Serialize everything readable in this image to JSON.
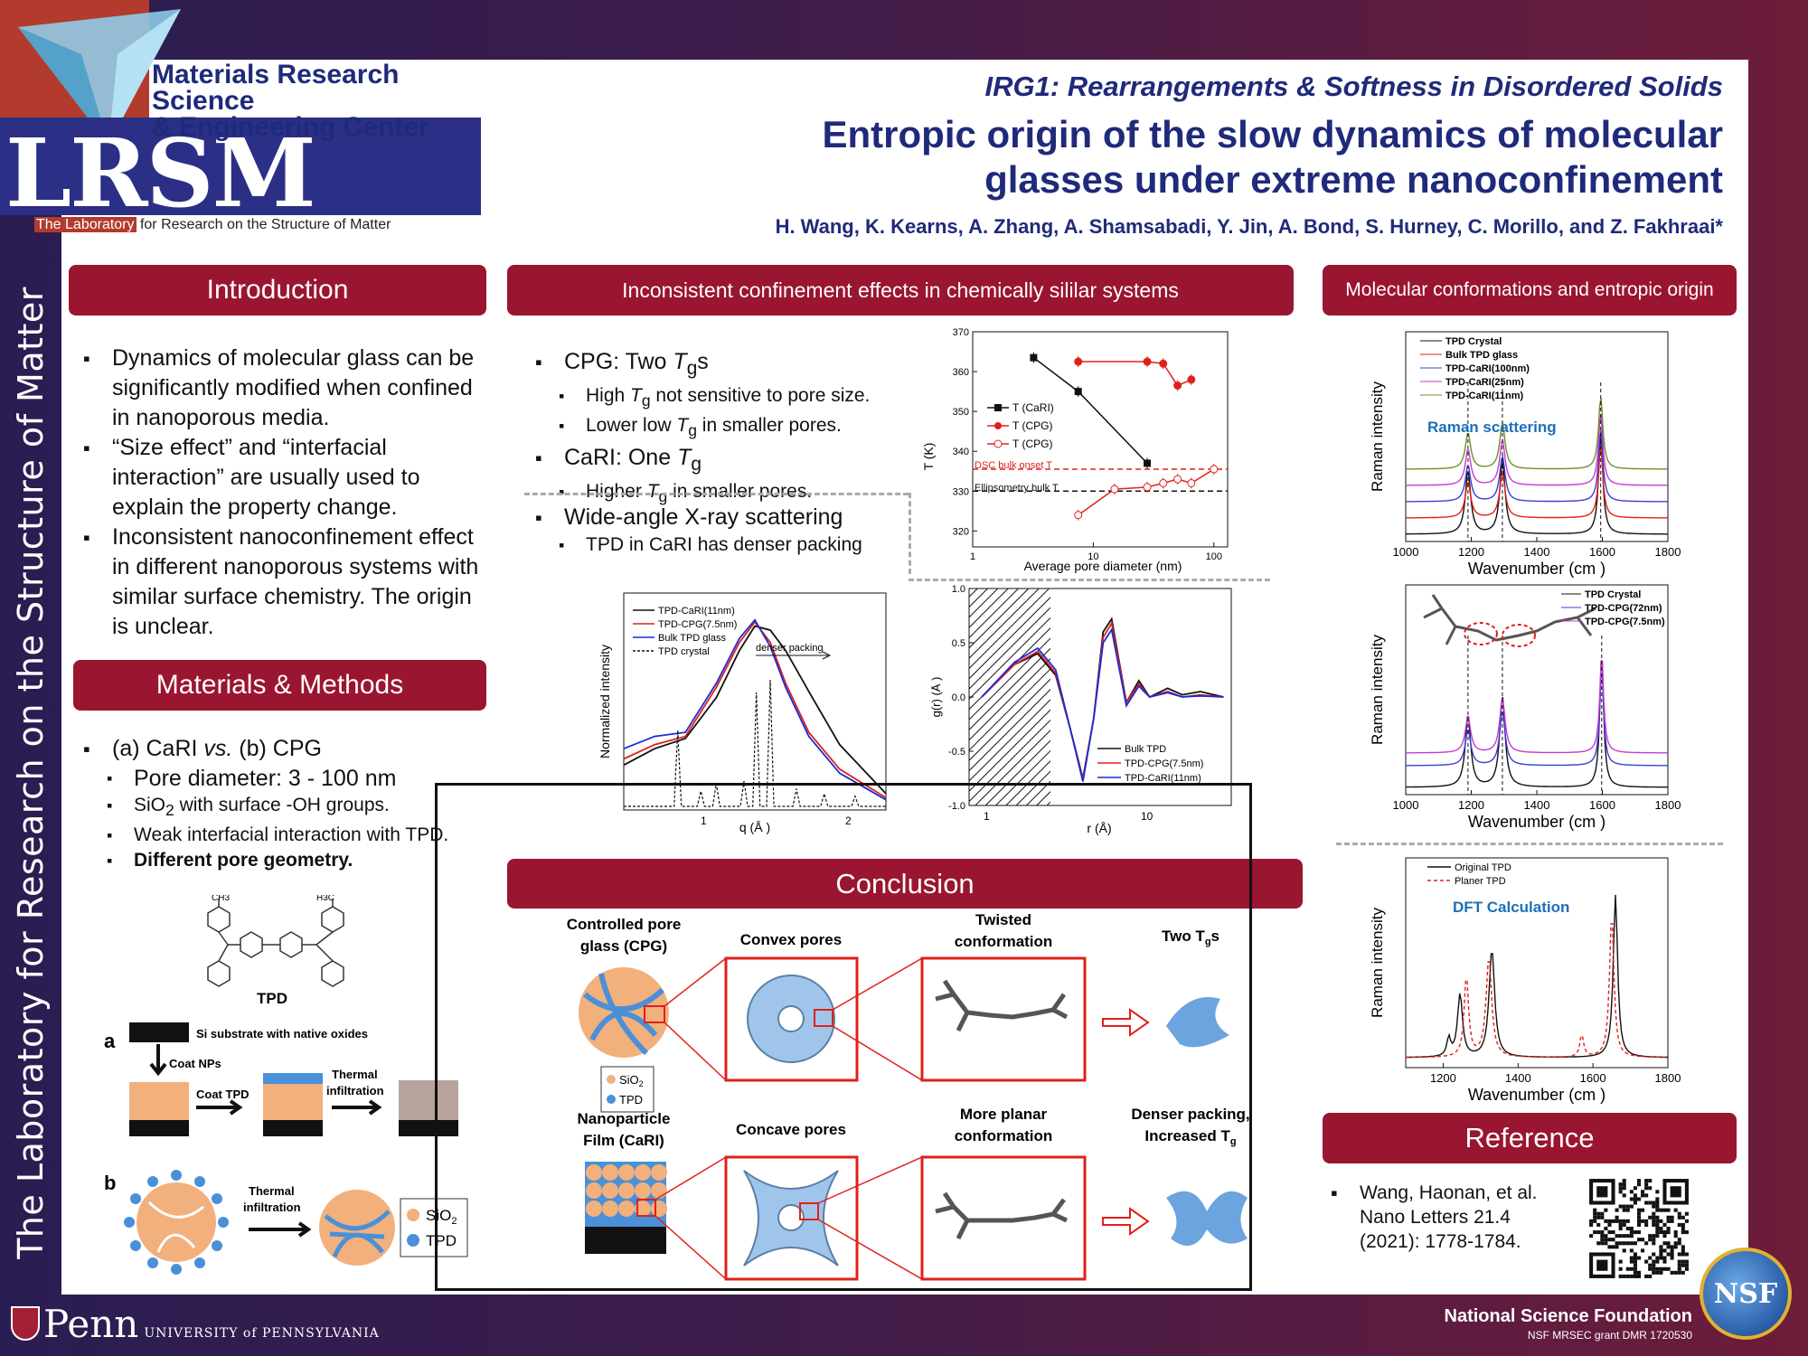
{
  "sidebar": {
    "text": "The Laboratory for Research on the Structure of Matter"
  },
  "header": {
    "mrsec_line1": "Materials Research Science",
    "mrsec_line2": "& Engineering Center",
    "logo_letters": "LRSM",
    "lrsm_prefix": "The Laboratory",
    "lrsm_suffix": " for Research on the Structure of Matter",
    "irg": "IRG1: Rearrangements & Softness in Disordered Solids",
    "title_line1": "Entropic origin of the slow dynamics of molecular",
    "title_line2": "glasses under extreme nanoconfinement",
    "authors": "H. Wang, K. Kearns, A. Zhang, A. Shamsabadi, Y. Jin, A. Bond, S. Hurney, C. Morillo, and Z. Fakhraai*"
  },
  "sections": {
    "intro": "Introduction",
    "inconsistent": "Inconsistent confinement effects in chemically sililar systems",
    "molecular": "Molecular conformations and entropic origin",
    "materials": "Materials & Methods",
    "conclusion": "Conclusion",
    "reference": "Reference"
  },
  "intro_bullets": [
    "Dynamics of molecular glass can be significantly modified when confined in nanoporous media.",
    "“Size effect” and “interfacial interaction” are usually used to explain the property change.",
    "Inconsistent nanoconfinement effect in different nanoporous systems with similar surface chemistry. The origin is unclear."
  ],
  "methods": {
    "main_pre": "(a) CaRI ",
    "main_vs": "vs.",
    "main_post": "  (b) CPG",
    "pore": "Pore diameter: 3 - 100 nm",
    "sio2_pre": "SiO",
    "sio2_sub": "2",
    "sio2_post": " with surface -OH groups.",
    "weak": "Weak interfacial interaction with TPD.",
    "geometry": "Different pore geometry.",
    "tpd_label": "TPD",
    "ch3_left": "CH3",
    "ch3_right": "H3C",
    "label_a": "a",
    "label_b": "b",
    "si_sub": "Si substrate with native oxides",
    "coat_nps": "Coat NPs",
    "coat_tpd": "Coat TPD",
    "thermal": "Thermal",
    "infiltration": "infiltration",
    "legend_sio2": "SiO",
    "legend_sio2_sub": "2",
    "legend_tpd": "TPD"
  },
  "cpg_bullets": {
    "cpg_pre": "CPG: Two ",
    "cpg_post": "s",
    "high_pre": "High ",
    "high_post": " not sensitive to pore size.",
    "lower_pre": "Lower low ",
    "lower_post": " in smaller pores.",
    "cari_pre": "CaRI: One ",
    "higher_pre": "Higher ",
    "higher_post": " in smaller pores.",
    "t": "T",
    "g": "g"
  },
  "waxs_bullets": {
    "main": "Wide-angle X-ray scattering",
    "sub": "TPD in CaRI has denser packing"
  },
  "chart_tg": {
    "ylabel": "T  (K)",
    "xlabel": "Average pore diameter (nm)",
    "yticks": [
      "320",
      "330",
      "340",
      "350",
      "360",
      "370"
    ],
    "xticks": [
      "1",
      "10",
      "100"
    ],
    "legend": [
      "T (CaRI)",
      "T (CPG)",
      "T (CPG)"
    ],
    "legend_sub": [
      "g",
      "g1",
      "g2"
    ],
    "dsc": "DSC bulk onset T",
    "ellip": "Ellipsometry bulk T",
    "colors": {
      "cari": "#111111",
      "cpg": "#e0201b"
    }
  },
  "chart_data": [
    {
      "type": "scatter",
      "title": "",
      "xlabel": "Average pore diameter (nm)",
      "ylabel": "T_g (K)",
      "xscale": "log",
      "xlim": [
        1,
        130
      ],
      "ylim": [
        316,
        370
      ],
      "series": [
        {
          "name": "Tg(CaRI)",
          "x": [
            3.2,
            7.5,
            28
          ],
          "y": [
            363.5,
            355,
            337
          ]
        },
        {
          "name": "Tg1(CPG)",
          "x": [
            7.5,
            28,
            38,
            50,
            65
          ],
          "y": [
            362.5,
            362.5,
            362,
            356.5,
            358
          ]
        },
        {
          "name": "Tg2(CPG)",
          "x": [
            7.5,
            15,
            28,
            38,
            50,
            65,
            100
          ],
          "y": [
            324,
            330.5,
            331,
            332,
            333,
            332,
            335.5
          ]
        }
      ],
      "hlines": [
        {
          "name": "DSC bulk onset Tg",
          "y": 335.5
        },
        {
          "name": "Ellipsometry bulk Tg",
          "y": 330
        }
      ]
    },
    {
      "type": "line",
      "xlabel": "q (Å⁻¹)",
      "ylabel": "Normalized intensity",
      "xlim": [
        0.5,
        2.2
      ],
      "series": [
        {
          "name": "TPD-CaRI(11nm)",
          "x": [
            0.5,
            0.7,
            0.9,
            1.1,
            1.25,
            1.35,
            1.45,
            1.55,
            1.7,
            1.9,
            2.2
          ],
          "y": [
            0.22,
            0.3,
            0.35,
            0.55,
            0.78,
            0.9,
            0.88,
            0.78,
            0.58,
            0.32,
            0.08
          ]
        },
        {
          "name": "TPD-CPG(7.5nm)",
          "x": [
            0.5,
            0.7,
            0.9,
            1.1,
            1.25,
            1.35,
            1.45,
            1.55,
            1.7,
            1.9,
            2.2
          ],
          "y": [
            0.25,
            0.32,
            0.36,
            0.6,
            0.82,
            0.92,
            0.82,
            0.62,
            0.38,
            0.2,
            0.06
          ]
        },
        {
          "name": "Bulk TPD glass",
          "x": [
            0.5,
            0.7,
            0.9,
            1.1,
            1.25,
            1.35,
            1.45,
            1.55,
            1.7,
            1.9,
            2.2
          ],
          "y": [
            0.3,
            0.36,
            0.38,
            0.62,
            0.84,
            0.93,
            0.8,
            0.6,
            0.36,
            0.18,
            0.05
          ]
        }
      ],
      "annotation": "denser packing"
    },
    {
      "type": "line",
      "xlabel": "r (Å)",
      "ylabel": "g(r) (Å⁻²)",
      "xscale": "log",
      "ylim": [
        -1.0,
        1.0
      ],
      "series": [
        {
          "name": "Bulk TPD",
          "x": [
            1,
            1.5,
            2,
            2.5,
            3,
            3.5,
            4,
            4.5,
            5,
            6,
            7,
            8,
            10,
            12,
            15,
            20
          ],
          "y": [
            0,
            0.3,
            0.4,
            0.2,
            -0.3,
            -0.75,
            -0.2,
            0.6,
            0.72,
            -0.05,
            0.15,
            0.0,
            0.08,
            0.02,
            0.05,
            0.0
          ]
        },
        {
          "name": "TPD-CPG(7.5nm)",
          "x": [
            1,
            1.5,
            2,
            2.5,
            3,
            3.5,
            4,
            4.5,
            5,
            6,
            7,
            8,
            10,
            12,
            15,
            20
          ],
          "y": [
            0,
            0.3,
            0.42,
            0.22,
            -0.3,
            -0.76,
            -0.2,
            0.55,
            0.68,
            -0.05,
            0.12,
            0.0,
            0.05,
            0.0,
            0.02,
            0.0
          ]
        },
        {
          "name": "TPD-CaRI(11nm)",
          "x": [
            1,
            1.5,
            2,
            2.5,
            3,
            3.5,
            4,
            4.5,
            5,
            6,
            7,
            8,
            10,
            12,
            15,
            20
          ],
          "y": [
            0,
            0.32,
            0.45,
            0.25,
            -0.3,
            -0.78,
            -0.2,
            0.5,
            0.62,
            -0.08,
            0.1,
            0.0,
            0.04,
            0.0,
            0.01,
            0.0
          ]
        }
      ]
    },
    {
      "type": "line",
      "title": "Raman scattering",
      "xlabel": "Wavenumber (cm⁻¹)",
      "ylabel": "Raman intensity",
      "xlim": [
        1000,
        1800
      ],
      "series": [
        {
          "name": "TPD Crystal"
        },
        {
          "name": "Bulk TPD glass"
        },
        {
          "name": "TPD-CaRI(100nm)"
        },
        {
          "name": "TPD-CaRI(25nm)"
        },
        {
          "name": "TPD-CaRI(11nm)"
        }
      ]
    },
    {
      "type": "line",
      "xlabel": "Wavenumber (cm⁻¹)",
      "ylabel": "Raman intensity",
      "xlim": [
        1000,
        1800
      ],
      "series": [
        {
          "name": "TPD Crystal"
        },
        {
          "name": "TPD-CPG(72nm)"
        },
        {
          "name": "TPD-CPG(7.5nm)"
        }
      ]
    },
    {
      "type": "line",
      "title": "DFT Calculation",
      "xlabel": "Wavenumber (cm⁻¹)",
      "ylabel": "Raman intensity",
      "xlim": [
        1100,
        1800
      ],
      "series": [
        {
          "name": "Original TPD"
        },
        {
          "name": "Planer TPD"
        }
      ]
    }
  ],
  "xrd": {
    "ylabel": "Normalized intensity",
    "xlabel": "q (Å )",
    "xlabel_sup": "-1",
    "xticks": [
      "1",
      "2"
    ],
    "legend": [
      "TPD-CaRI(11nm)",
      "TPD-CPG(7.5nm)",
      "Bulk TPD glass",
      "TPD crystal"
    ],
    "annotation": "denser packing"
  },
  "gr": {
    "ylabel": "g(r) (Å  )",
    "ylabel_sup": "-2",
    "xlabel": "r (Å)",
    "yticks": [
      "1.0",
      "0.5",
      "0.0",
      "-0.5",
      "-1.0"
    ],
    "xticks": [
      "1",
      "10"
    ],
    "legend": [
      "Bulk TPD",
      "TPD-CPG(7.5nm)",
      "TPD-CaRI(11nm)"
    ]
  },
  "raman1": {
    "ylabel": "Raman intensity",
    "xlabel": "Wavenumber (cm  )",
    "xlabel_sup": "-1",
    "title": "Raman scattering",
    "xticks": [
      "1000",
      "1200",
      "1400",
      "1600",
      "1800"
    ],
    "legend": [
      "TPD Crystal",
      "Bulk TPD glass",
      "TPD-CaRI(100nm)",
      "TPD-CaRI(25nm)",
      "TPD-CaRI(11nm)"
    ]
  },
  "raman2": {
    "ylabel": "Raman intensity",
    "xlabel": "Wavenumber (cm  )",
    "xlabel_sup": "-1",
    "xticks": [
      "1000",
      "1200",
      "1400",
      "1600",
      "1800"
    ],
    "legend": [
      "TPD Crystal",
      "TPD-CPG(72nm)",
      "TPD-CPG(7.5nm)"
    ]
  },
  "raman3": {
    "ylabel": "Raman intensity",
    "xlabel": "Wavenumber (cm  )",
    "xlabel_sup": "-1",
    "title": "DFT Calculation",
    "xticks": [
      "1200",
      "1400",
      "1600",
      "1800"
    ],
    "legend": [
      "Original TPD",
      "Planer TPD"
    ]
  },
  "conclusion": {
    "cpg_label_1": "Controlled pore",
    "cpg_label_2": "glass (CPG)",
    "convex": "Convex pores",
    "twisted_1": "Twisted",
    "twisted_2": "conformation",
    "two_tg": "Two T",
    "two_tg_sub": "g",
    "two_tg_s": "s",
    "nano_1": "Nanoparticle",
    "nano_2": "Film (CaRI)",
    "concave": "Concave pores",
    "planar_1": "More planar",
    "planar_2": "conformation",
    "denser_1": "Denser packing,",
    "denser_2": "Increased T",
    "denser_sub": "g",
    "legend_sio2": "SiO",
    "legend_sio2_sub": "2",
    "legend_tpd": "TPD"
  },
  "reference": {
    "line1": "Wang, Haonan, et al.",
    "line2": "Nano Letters 21.4",
    "line3": "(2021): 1778-1784."
  },
  "footer": {
    "penn": "Penn",
    "penn_sub": "UNIVERSITY of PENNSYLVANIA",
    "nsf": "National Science Foundation",
    "nsf_sub": "NSF MRSEC grant DMR 1720530",
    "seal": "NSF"
  },
  "colors": {
    "accent": "#9a1530",
    "navy": "#1f2a7a",
    "sio2": "#f2b07c",
    "tpd": "#4a90d9"
  }
}
